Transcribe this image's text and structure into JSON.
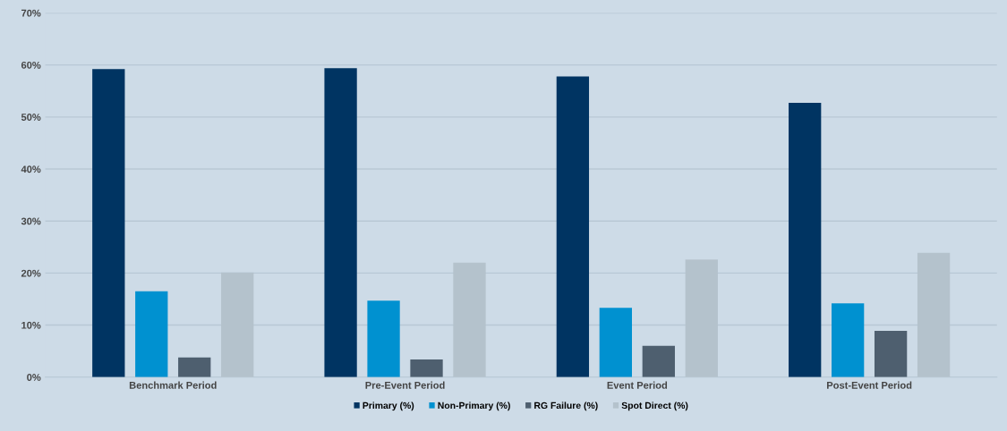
{
  "chart_data": {
    "type": "bar",
    "categories": [
      "Benchmark Period",
      "Pre-Event Period",
      "Event Period",
      "Post-Event Period"
    ],
    "series": [
      {
        "name": "Primary (%)",
        "color": "#003462",
        "values": [
          59.2,
          59.4,
          57.8,
          52.7
        ]
      },
      {
        "name": "Non-Primary (%)",
        "color": "#0091d0",
        "values": [
          16.5,
          14.7,
          13.3,
          14.2
        ]
      },
      {
        "name": "RG Failure (%)",
        "color": "#4e5f6f",
        "values": [
          3.8,
          3.4,
          6.0,
          8.9
        ]
      },
      {
        "name": "Spot Direct (%)",
        "color": "#b4c2cc",
        "values": [
          20.1,
          22.0,
          22.6,
          23.9
        ]
      }
    ],
    "ylim": [
      0,
      70
    ],
    "yticks": [
      {
        "value": 0,
        "label": "0%"
      },
      {
        "value": 10,
        "label": "10%"
      },
      {
        "value": 20,
        "label": "20%"
      },
      {
        "value": 30,
        "label": "30%"
      },
      {
        "value": 40,
        "label": "40%"
      },
      {
        "value": 50,
        "label": "50%"
      },
      {
        "value": 60,
        "label": "60%"
      },
      {
        "value": 70,
        "label": "70%"
      }
    ],
    "grid": "y",
    "legend": "bottom"
  }
}
